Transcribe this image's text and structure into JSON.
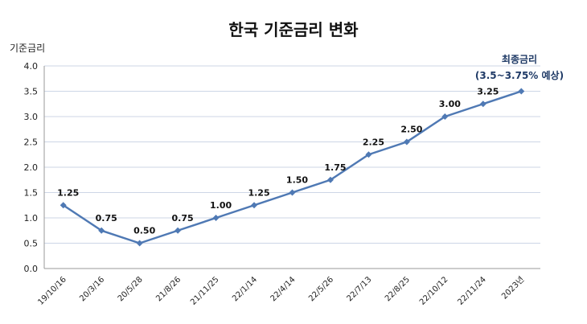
{
  "chart_data": {
    "type": "line",
    "title": "한국 기준금리 변화",
    "ylabel": "기준금리",
    "xlabel": "",
    "ylim": [
      0,
      4.0
    ],
    "yticks": [
      "0.0",
      "0.5",
      "1.0",
      "1.5",
      "2.0",
      "2.5",
      "3.0",
      "3.5",
      "4.0"
    ],
    "categories": [
      "19/10/16",
      "20/3/16",
      "20/5/28",
      "21/8/26",
      "21/11/25",
      "22/1/14",
      "22/4/14",
      "22/5/26",
      "22/7/13",
      "22/8/25",
      "22/10/12",
      "22/11/24",
      "2023년"
    ],
    "values": [
      1.25,
      0.75,
      0.5,
      0.75,
      1.0,
      1.25,
      1.5,
      1.75,
      2.25,
      2.5,
      3.0,
      3.25,
      3.5
    ],
    "data_labels": [
      "1.25",
      "0.75",
      "0.50",
      "0.75",
      "1.00",
      "1.25",
      "1.50",
      "1.75",
      "2.25",
      "2.50",
      "3.00",
      "3.25",
      ""
    ],
    "annotation": {
      "line1": "최종금리",
      "line2": "(3.5~3.75% 예상)"
    },
    "grid": true,
    "line_color": "#4f79b4",
    "grid_color": "#cdd6e6"
  }
}
